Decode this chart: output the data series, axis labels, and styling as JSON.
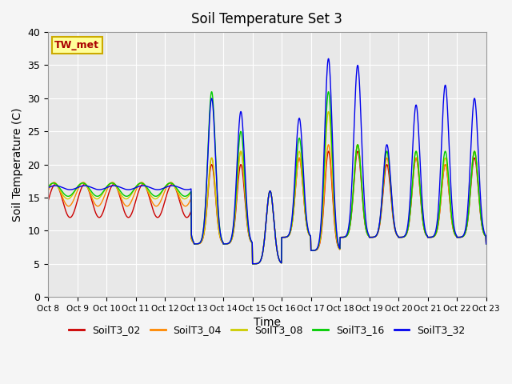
{
  "title": "Soil Temperature Set 3",
  "xlabel": "Time",
  "ylabel": "Soil Temperature (C)",
  "annotation": "TW_met",
  "ylim": [
    0,
    40
  ],
  "series_labels": [
    "SoilT3_02",
    "SoilT3_04",
    "SoilT3_08",
    "SoilT3_16",
    "SoilT3_32"
  ],
  "series_colors": [
    "#cc0000",
    "#ff8800",
    "#cccc00",
    "#00cc00",
    "#0000ee"
  ],
  "xtick_labels": [
    "Oct 8",
    "Oct 9",
    "Oct 10",
    "Oct 11",
    "Oct 12",
    "Oct 13",
    "Oct 14",
    "Oct 15",
    "Oct 16",
    "Oct 17",
    "Oct 18",
    "Oct 19",
    "Oct 20",
    "Oct 21",
    "Oct 22",
    "Oct 23"
  ],
  "background_color": "#e8e8e8",
  "grid_color": "#ffffff",
  "linewidth": 1.0,
  "n_days": 15,
  "phase1_days": 5,
  "phase1_base": 16.0,
  "phase2_trough": 8.5,
  "figsize": [
    6.4,
    4.8
  ],
  "dpi": 100
}
